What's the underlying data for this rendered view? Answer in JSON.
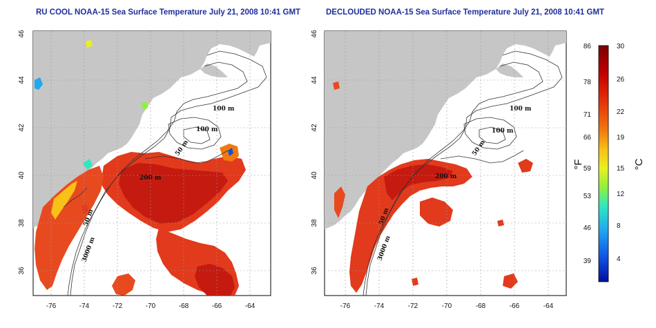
{
  "titles": {
    "left": "RU COOL NOAA-15 Sea Surface Temperature July 21, 2008 10:41 GMT",
    "right": "DECLOUDED NOAA-15 Sea Surface Temperature July 21, 2008 10:41 GMT"
  },
  "map_axes": {
    "x_ticks": [
      "-76",
      "-74",
      "-72",
      "-70",
      "-68",
      "-66",
      "-64"
    ],
    "y_ticks": [
      "46",
      "44",
      "42",
      "40",
      "38",
      "36"
    ],
    "grid": true
  },
  "contour_labels": {
    "left": [
      "100 m",
      "100 m",
      "50 m",
      "200 m",
      "50 m",
      "3000 m"
    ],
    "right": [
      "100 m",
      "100 m",
      "50 m",
      "200 m",
      "50 m",
      "3000 m"
    ]
  },
  "colorbar": {
    "fahrenheit_ticks": [
      "86",
      "78",
      "71",
      "66",
      "59",
      "53",
      "46",
      "39"
    ],
    "celsius_ticks": [
      "30",
      "26",
      "22",
      "19",
      "15",
      "12",
      "8",
      "4"
    ],
    "fahrenheit_unit": "°F",
    "celsius_unit": "°C",
    "colors": [
      "#7a0000",
      "#c40000",
      "#e8380a",
      "#f07a10",
      "#f8c018",
      "#e8f020",
      "#90f040",
      "#30e8c0",
      "#20a8f0",
      "#1050e0",
      "#0010a0"
    ]
  },
  "colors": {
    "land": "#c6c6c6",
    "title": "#1f2e9c",
    "sst_warm": "#e23a1c",
    "sst_hot": "#c41a10"
  }
}
